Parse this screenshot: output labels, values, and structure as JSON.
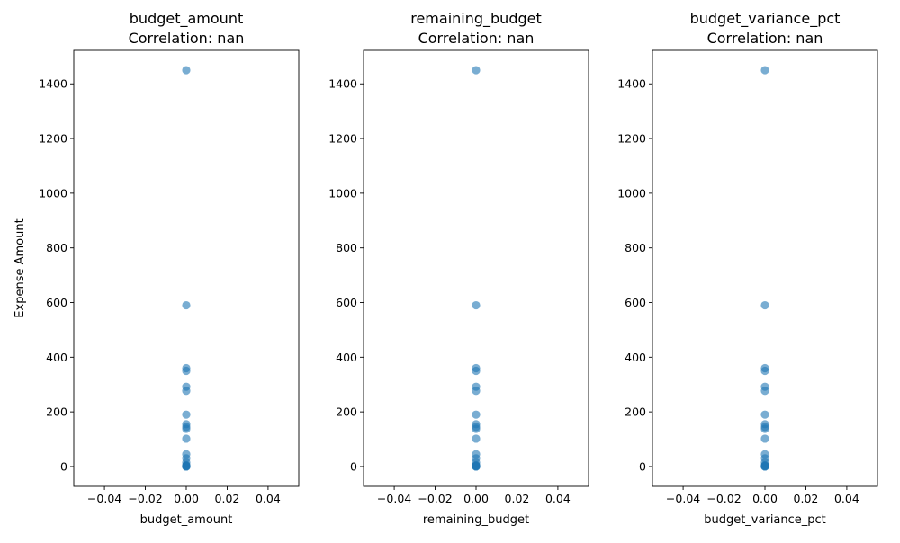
{
  "chart_data": [
    {
      "type": "scatter",
      "title": "budget_amount",
      "subtitle": "Correlation: nan",
      "xlabel": "budget_amount",
      "ylabel": "Expense Amount",
      "xlim": [
        -0.055,
        0.055
      ],
      "ylim": [
        -72.5,
        1522.5
      ],
      "x_ticks": [
        -0.04,
        -0.02,
        0.0,
        0.02,
        0.04
      ],
      "x_tick_labels": [
        "−0.04",
        "−0.02",
        "0.00",
        "0.02",
        "0.04"
      ],
      "y_ticks": [
        0,
        200,
        400,
        600,
        800,
        1000,
        1200,
        1400
      ],
      "y_tick_labels": [
        "0",
        "200",
        "400",
        "600",
        "800",
        "1000",
        "1200",
        "1400"
      ],
      "color": "#1f77b4",
      "alpha": 0.6,
      "grid": false,
      "x": [
        0,
        0,
        0,
        0,
        0,
        0,
        0,
        0,
        0,
        0,
        0,
        0,
        0,
        0,
        0,
        0,
        0,
        0,
        0,
        0
      ],
      "y": [
        1450,
        590,
        360,
        350,
        292,
        277,
        190,
        155,
        145,
        138,
        102,
        45,
        30,
        15,
        5,
        3,
        2,
        1,
        0,
        0
      ]
    },
    {
      "type": "scatter",
      "title": "remaining_budget",
      "subtitle": "Correlation: nan",
      "xlabel": "remaining_budget",
      "ylabel": "",
      "xlim": [
        -0.055,
        0.055
      ],
      "ylim": [
        -72.5,
        1522.5
      ],
      "x_ticks": [
        -0.04,
        -0.02,
        0.0,
        0.02,
        0.04
      ],
      "x_tick_labels": [
        "−0.04",
        "−0.02",
        "0.00",
        "0.02",
        "0.04"
      ],
      "y_ticks": [
        0,
        200,
        400,
        600,
        800,
        1000,
        1200,
        1400
      ],
      "y_tick_labels": [
        "0",
        "200",
        "400",
        "600",
        "800",
        "1000",
        "1200",
        "1400"
      ],
      "color": "#1f77b4",
      "alpha": 0.6,
      "grid": false,
      "x": [
        0,
        0,
        0,
        0,
        0,
        0,
        0,
        0,
        0,
        0,
        0,
        0,
        0,
        0,
        0,
        0,
        0,
        0,
        0,
        0
      ],
      "y": [
        1450,
        590,
        360,
        350,
        292,
        277,
        190,
        155,
        145,
        138,
        102,
        45,
        30,
        15,
        5,
        3,
        2,
        1,
        0,
        0
      ]
    },
    {
      "type": "scatter",
      "title": "budget_variance_pct",
      "subtitle": "Correlation: nan",
      "xlabel": "budget_variance_pct",
      "ylabel": "",
      "xlim": [
        -0.055,
        0.055
      ],
      "ylim": [
        -72.5,
        1522.5
      ],
      "x_ticks": [
        -0.04,
        -0.02,
        0.0,
        0.02,
        0.04
      ],
      "x_tick_labels": [
        "−0.04",
        "−0.02",
        "0.00",
        "0.02",
        "0.04"
      ],
      "y_ticks": [
        0,
        200,
        400,
        600,
        800,
        1000,
        1200,
        1400
      ],
      "y_tick_labels": [
        "0",
        "200",
        "400",
        "600",
        "800",
        "1000",
        "1200",
        "1400"
      ],
      "color": "#1f77b4",
      "alpha": 0.6,
      "grid": false,
      "x": [
        0,
        0,
        0,
        0,
        0,
        0,
        0,
        0,
        0,
        0,
        0,
        0,
        0,
        0,
        0,
        0,
        0,
        0,
        0,
        0
      ],
      "y": [
        1450,
        590,
        360,
        350,
        292,
        277,
        190,
        155,
        145,
        138,
        102,
        45,
        30,
        15,
        5,
        3,
        2,
        1,
        0,
        0
      ]
    }
  ]
}
